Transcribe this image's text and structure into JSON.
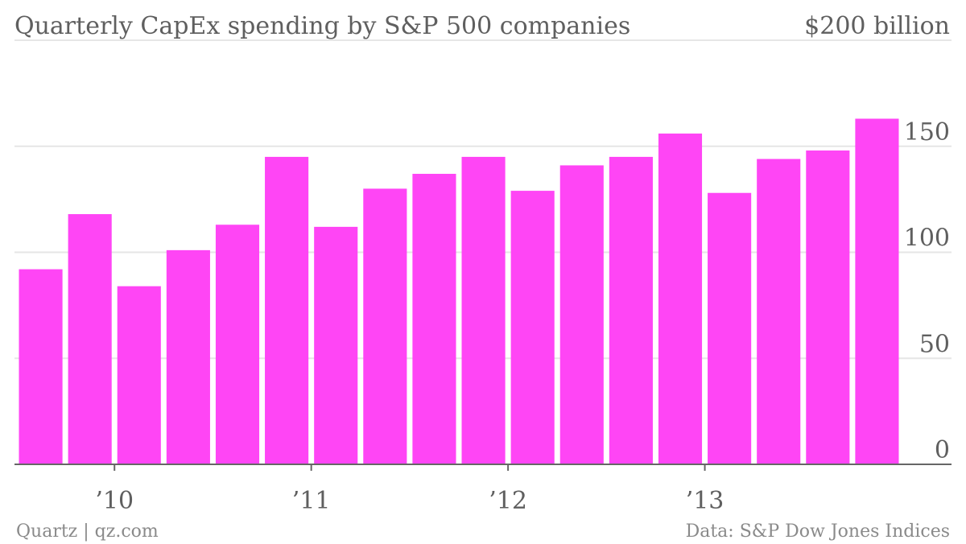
{
  "chart_data": {
    "type": "bar",
    "title": "Quarterly CapEx spending by S&P 500 companies",
    "ylim": [
      0,
      200
    ],
    "y_top_label": "$200 billion",
    "y_ticks": [
      {
        "value": 150,
        "label": "150"
      },
      {
        "value": 100,
        "label": "100"
      },
      {
        "value": 50,
        "label": "50"
      },
      {
        "value": 0,
        "label": "0"
      }
    ],
    "x_ticks": [
      {
        "after_index": 1,
        "label": "’10"
      },
      {
        "after_index": 5,
        "label": "’11"
      },
      {
        "after_index": 9,
        "label": "’12"
      },
      {
        "after_index": 13,
        "label": "’13"
      }
    ],
    "values": [
      92,
      118,
      84,
      101,
      113,
      145,
      112,
      130,
      137,
      145,
      129,
      141,
      145,
      156,
      128,
      144,
      148,
      163
    ],
    "bar_color": "#ff45f5",
    "grid": true,
    "gridline_color": "#e6e6e6",
    "axis_color": "#666666"
  },
  "footer": {
    "source_left": "Quartz | qz.com",
    "source_right": "Data: S&P Dow Jones Indices"
  }
}
